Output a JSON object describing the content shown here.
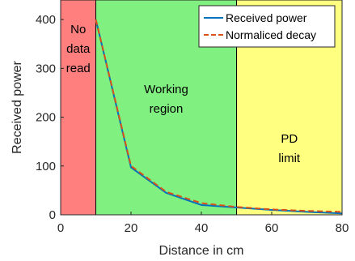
{
  "chart_data": {
    "type": "line",
    "title": "",
    "xlabel": "Distance in cm",
    "ylabel": "Received power",
    "xlim": [
      0,
      80
    ],
    "ylim": [
      0,
      440
    ],
    "xticks": [
      0,
      20,
      40,
      60,
      80
    ],
    "yticks": [
      0,
      100,
      200,
      300,
      400
    ],
    "grid": false,
    "legend_position": "top-right",
    "x": [
      10,
      20,
      30,
      40,
      50,
      60,
      70,
      80
    ],
    "series": [
      {
        "name": "Received power",
        "color": "#0072BD",
        "style": "solid",
        "values": [
          400,
          97,
          45,
          20,
          15,
          10,
          6,
          3
        ]
      },
      {
        "name": "Normaliced decay",
        "color": "#D95319",
        "style": "dashed",
        "values": [
          400,
          100,
          47,
          24,
          16,
          11,
          8,
          6
        ]
      }
    ],
    "regions": [
      {
        "label_lines": [
          "No",
          "data",
          "read"
        ],
        "x_range": [
          0,
          10
        ],
        "color": "#FF7F7F"
      },
      {
        "label_lines": [
          "Working",
          "region"
        ],
        "x_range": [
          10,
          50
        ],
        "color": "#80F080"
      },
      {
        "label_lines": [
          "PD",
          "limit"
        ],
        "x_range": [
          50,
          80
        ],
        "color": "#FFFF80"
      }
    ]
  }
}
